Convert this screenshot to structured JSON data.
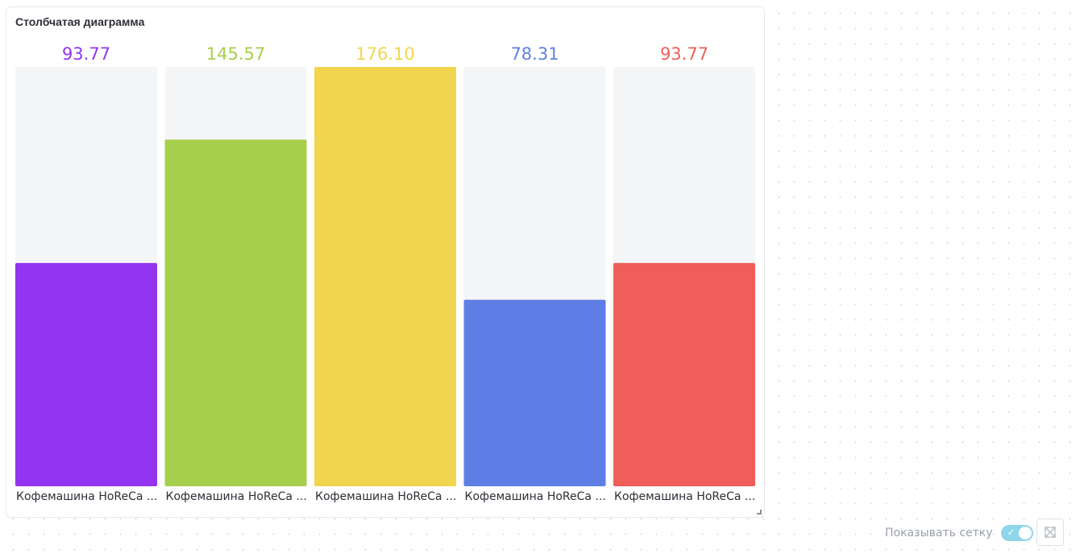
{
  "widget": {
    "title": "Столбчатая диаграмма"
  },
  "chart_data": {
    "type": "bar",
    "title": "Столбчатая диаграмма",
    "categories": [
      "Кофемашина HoReCa ...",
      "Кофемашина HoReCa ...",
      "Кофемашина HoReCa ...",
      "Кофемашина HoReCa ...",
      "Кофемашина HoReCa ..."
    ],
    "values": [
      93.77,
      145.57,
      176.1,
      78.31,
      93.77
    ],
    "value_labels": [
      "93.77",
      "145.57",
      "176.10",
      "78.31",
      "93.77"
    ],
    "colors": [
      "#9334f0",
      "#a6cf4c",
      "#f2d54f",
      "#5f7ee5",
      "#ef5e59"
    ],
    "track_color": "#f4f5f7",
    "ylim": [
      0,
      176.1
    ],
    "grid": false
  },
  "controls": {
    "show_grid_label": "Показывать сетку",
    "show_grid_enabled": true,
    "toggle_icon": "check-icon",
    "expand_icon": "expand-icon"
  }
}
